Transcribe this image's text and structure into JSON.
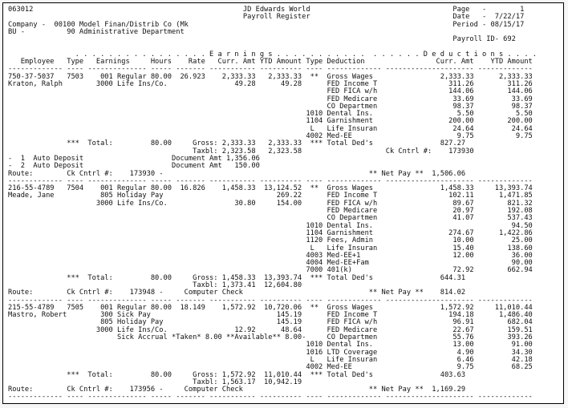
{
  "meta": {
    "program_id": "063012",
    "system_title": "JD Edwards World",
    "report_title": "Payroll Register",
    "page": "1",
    "date": "7/22/17",
    "period": "08/15/17",
    "payroll_id": "692",
    "company": "00100 Model Finan/Distrib Co (Mk",
    "business_unit": "90 Administrative Department",
    "employees": [
      {
        "employee_no": "750-37-5037",
        "name": "Kraton, Ralph",
        "check_type": "7503",
        "hours": "80.00",
        "rate": "26.923",
        "gross": "2,333.33",
        "taxable": "2,323.58",
        "total_deductions": "827.27",
        "net_pay": "1,506.06",
        "ck_cntrl": "173930",
        "payments": [
          "Auto Deposit 1,356.06",
          "Auto Deposit 150.00"
        ]
      },
      {
        "employee_no": "216-55-4789",
        "name": "Meade, Jane",
        "check_type": "7504",
        "hours": "80.00",
        "rate": "16.826",
        "gross": "1,458.33",
        "taxable": "1,373.41",
        "total_deductions": "644.31",
        "net_pay": "814.02",
        "ck_cntrl": "173948",
        "payments": [
          "Computer Check"
        ]
      },
      {
        "employee_no": "215-55-4789",
        "name": "Mastro, Robert",
        "check_type": "7505",
        "hours": "80.00",
        "rate": "18.149",
        "gross": "1,572.92",
        "taxable": "1,563.17",
        "total_deductions": "403.63",
        "net_pay": "1,169.29",
        "ck_cntrl": "173956",
        "payments": [
          "Computer Check"
        ]
      }
    ]
  },
  "report": {
    "separator": "------------- ---- -------------- ----- ------- ----------- ---------- ---- ------------- --------------------- -------------",
    "lines": [
      [
        [
          0,
          "063012"
        ],
        [
          56,
          "JD Edwards World"
        ],
        [
          106,
          "Page"
        ],
        [
          113,
          "-"
        ],
        [
          122,
          "1"
        ]
      ],
      [
        [
          56,
          "Payroll Register"
        ],
        [
          106,
          "Date"
        ],
        [
          113,
          "-"
        ],
        [
          116,
          "7/22/17"
        ]
      ],
      [
        [
          0,
          "Company"
        ],
        [
          8,
          "-"
        ],
        [
          11,
          "00100"
        ],
        [
          17,
          "Model Finan/Distrib Co (Mk"
        ],
        [
          106,
          "Period"
        ],
        [
          113,
          "-"
        ],
        [
          115,
          "08/15/17"
        ]
      ],
      [
        [
          0,
          "BU"
        ],
        [
          3,
          "-"
        ],
        [
          14,
          "90"
        ],
        [
          17,
          "Administrative Department"
        ]
      ],
      [
        [
          106,
          "Payroll ID- 692"
        ]
      ],
      [],
      [
        [
          16,
          ". . . . . . . . . . . . . . . ."
        ],
        [
          48,
          "E a r n i n g s"
        ],
        [
          64,
          ". . . . . . . . . . ."
        ],
        [
          87,
          ". . . . . ."
        ],
        [
          99,
          "D e d u c t i o n s"
        ],
        [
          119,
          ". . . ."
        ]
      ],
      [
        [
          3,
          "Employee"
        ],
        [
          14,
          "Type"
        ],
        [
          21,
          "Earnings"
        ],
        [
          34,
          "Hours"
        ],
        [
          43,
          "Rate"
        ],
        [
          50,
          "Curr. Amt"
        ],
        [
          60,
          "YTD Amount"
        ],
        [
          71,
          "Type"
        ],
        [
          76,
          "Deduction"
        ],
        [
          102,
          "Curr. Amt"
        ],
        [
          115,
          "YTD Amount"
        ]
      ],
      "SEP",
      [
        [
          0,
          "750-37-5037"
        ],
        [
          14,
          "7503"
        ],
        [
          22,
          "001"
        ],
        [
          26,
          "Regular"
        ],
        [
          34,
          "80.00"
        ],
        [
          41,
          "26.923"
        ],
        [
          51,
          "2,333.33"
        ],
        [
          62,
          "2,333.33"
        ],
        [
          72,
          "**"
        ],
        [
          76,
          "Gross Wages"
        ],
        [
          103,
          "2,333.33"
        ],
        [
          117,
          "2,333.33"
        ]
      ],
      [
        [
          0,
          "Kraton, Ralph"
        ],
        [
          21,
          "3000"
        ],
        [
          26,
          "Life Ins/Co."
        ],
        [
          54,
          "49.28"
        ],
        [
          65,
          "49.28"
        ],
        [
          76,
          "FED Income T"
        ],
        [
          105,
          "311.26"
        ],
        [
          119,
          "311.26"
        ]
      ],
      [
        [
          76,
          "FED FICA w/h"
        ],
        [
          105,
          "144.06"
        ],
        [
          119,
          "144.06"
        ]
      ],
      [
        [
          76,
          "FED Medicare"
        ],
        [
          106,
          "33.69"
        ],
        [
          120,
          "33.69"
        ]
      ],
      [
        [
          76,
          "CO Departmen"
        ],
        [
          106,
          "98.37"
        ],
        [
          120,
          "98.37"
        ]
      ],
      [
        [
          71,
          "1010"
        ],
        [
          76,
          "Dental Ins."
        ],
        [
          107,
          "5.50"
        ],
        [
          121,
          "5.50"
        ]
      ],
      [
        [
          71,
          "1104"
        ],
        [
          76,
          "Garnishment"
        ],
        [
          105,
          "200.00"
        ],
        [
          119,
          "200.00"
        ]
      ],
      [
        [
          72,
          "L"
        ],
        [
          76,
          "Life Insuran"
        ],
        [
          106,
          "24.64"
        ],
        [
          120,
          "24.64"
        ]
      ],
      [
        [
          71,
          "4002"
        ],
        [
          76,
          "Med-EE"
        ],
        [
          107,
          "9.75"
        ],
        [
          121,
          "9.75"
        ]
      ],
      [
        [
          14,
          "***"
        ],
        [
          19,
          "Total:"
        ],
        [
          34,
          "80.00"
        ],
        [
          44,
          "Gross:"
        ],
        [
          51,
          "2,333.33"
        ],
        [
          62,
          "2,333.33"
        ],
        [
          72,
          "***"
        ],
        [
          76,
          "Total Ded's"
        ],
        [
          103,
          "827.27"
        ]
      ],
      [
        [
          44,
          "Taxbl:"
        ],
        [
          51,
          "2,323.58"
        ],
        [
          62,
          "2,323.58"
        ],
        [
          90,
          "Ck Cntrl #:"
        ],
        [
          105,
          "173930"
        ]
      ],
      [
        [
          0,
          "-"
        ],
        [
          3,
          "1"
        ],
        [
          6,
          "Auto Deposit"
        ],
        [
          39,
          "Document Amt"
        ],
        [
          52,
          "1,356.06"
        ]
      ],
      [
        [
          0,
          "-"
        ],
        [
          3,
          "2"
        ],
        [
          6,
          "Auto Deposit"
        ],
        [
          39,
          "Document Amt"
        ],
        [
          54,
          "150.00"
        ]
      ],
      [
        [
          0,
          "Route:"
        ],
        [
          14,
          "Ck Cntrl #:"
        ],
        [
          29,
          "173930"
        ],
        [
          36,
          "-"
        ],
        [
          86,
          "** Net Pay **"
        ],
        [
          101,
          "1,506.06"
        ]
      ],
      "SEP",
      [
        [
          0,
          "216-55-4789"
        ],
        [
          14,
          "7504"
        ],
        [
          22,
          "001"
        ],
        [
          26,
          "Regular"
        ],
        [
          34,
          "80.00"
        ],
        [
          41,
          "16.826"
        ],
        [
          51,
          "1,458.33"
        ],
        [
          61,
          "13,124.52"
        ],
        [
          72,
          "**"
        ],
        [
          76,
          "Gross Wages"
        ],
        [
          103,
          "1,458.33"
        ],
        [
          116,
          "13,393.74"
        ]
      ],
      [
        [
          0,
          "Meade, Jane"
        ],
        [
          22,
          "805"
        ],
        [
          26,
          "Holiday Pay"
        ],
        [
          64,
          "269.22"
        ],
        [
          76,
          "FED Income T"
        ],
        [
          105,
          "102.11"
        ],
        [
          117,
          "1,471.85"
        ]
      ],
      [
        [
          21,
          "3000"
        ],
        [
          26,
          "Life Ins/Co."
        ],
        [
          54,
          "30.80"
        ],
        [
          64,
          "154.00"
        ],
        [
          76,
          "FED FICA w/h"
        ],
        [
          106,
          "89.67"
        ],
        [
          119,
          "821.32"
        ]
      ],
      [
        [
          76,
          "FED Medicare"
        ],
        [
          106,
          "20.97"
        ],
        [
          119,
          "192.08"
        ]
      ],
      [
        [
          76,
          "CO Departmen"
        ],
        [
          106,
          "41.07"
        ],
        [
          119,
          "537.43"
        ]
      ],
      [
        [
          71,
          "1010"
        ],
        [
          76,
          "Dental Ins."
        ],
        [
          120,
          "94.50"
        ]
      ],
      [
        [
          71,
          "1104"
        ],
        [
          76,
          "Garnishment"
        ],
        [
          105,
          "274.67"
        ],
        [
          117,
          "1,422.86"
        ]
      ],
      [
        [
          71,
          "1120"
        ],
        [
          76,
          "Fees, Admin"
        ],
        [
          106,
          "10.00"
        ],
        [
          120,
          "25.00"
        ]
      ],
      [
        [
          72,
          "L"
        ],
        [
          76,
          "Life Insuran"
        ],
        [
          106,
          "15.40"
        ],
        [
          119,
          "138.60"
        ]
      ],
      [
        [
          71,
          "4003"
        ],
        [
          76,
          "Med-EE+1"
        ],
        [
          106,
          "12.00"
        ],
        [
          120,
          "36.00"
        ]
      ],
      [
        [
          71,
          "4004"
        ],
        [
          76,
          "Med-EE+Fam"
        ],
        [
          120,
          "90.00"
        ]
      ],
      [
        [
          71,
          "7000"
        ],
        [
          76,
          "401(k)"
        ],
        [
          106,
          "72.92"
        ],
        [
          119,
          "662.94"
        ]
      ],
      [
        [
          14,
          "***"
        ],
        [
          19,
          "Total:"
        ],
        [
          34,
          "80.00"
        ],
        [
          44,
          "Gross:"
        ],
        [
          51,
          "1,458.33"
        ],
        [
          61,
          "13,393.74"
        ],
        [
          72,
          "***"
        ],
        [
          76,
          "Total Ded's"
        ],
        [
          103,
          "644.31"
        ]
      ],
      [
        [
          44,
          "Taxbl:"
        ],
        [
          51,
          "1,373.41"
        ],
        [
          61,
          "12,604.80"
        ]
      ],
      [
        [
          0,
          "Route:"
        ],
        [
          14,
          "Ck Cntrl #:"
        ],
        [
          29,
          "173948"
        ],
        [
          36,
          "-"
        ],
        [
          42,
          "Computer Check"
        ],
        [
          86,
          "** Net Pay **"
        ],
        [
          103,
          "814.02"
        ]
      ],
      "SEP",
      [
        [
          0,
          "215-55-4789"
        ],
        [
          14,
          "7505"
        ],
        [
          22,
          "001"
        ],
        [
          26,
          "Regular"
        ],
        [
          34,
          "80.00"
        ],
        [
          41,
          "18.149"
        ],
        [
          51,
          "1,572.92"
        ],
        [
          61,
          "10,720.06"
        ],
        [
          72,
          "**"
        ],
        [
          76,
          "Gross Wages"
        ],
        [
          103,
          "1,572.92"
        ],
        [
          116,
          "11,010.44"
        ]
      ],
      [
        [
          0,
          "Mastro, Robert"
        ],
        [
          22,
          "300"
        ],
        [
          26,
          "Sick Pay"
        ],
        [
          64,
          "145.19"
        ],
        [
          76,
          "FED Income T"
        ],
        [
          105,
          "194.18"
        ],
        [
          117,
          "1,486.40"
        ]
      ],
      [
        [
          22,
          "805"
        ],
        [
          26,
          "Holiday Pay"
        ],
        [
          64,
          "145.19"
        ],
        [
          76,
          "FED FICA w/h"
        ],
        [
          106,
          "96.91"
        ],
        [
          119,
          "682.04"
        ]
      ],
      [
        [
          21,
          "3000"
        ],
        [
          26,
          "Life Ins/Co."
        ],
        [
          54,
          "12.92"
        ],
        [
          65,
          "48.64"
        ],
        [
          76,
          "FED Medicare"
        ],
        [
          106,
          "22.67"
        ],
        [
          119,
          "159.51"
        ]
      ],
      [
        [
          26,
          "Sick Accrual *Taken*"
        ],
        [
          47,
          "8.00"
        ],
        [
          52,
          "**Available**"
        ],
        [
          66,
          "8.00-"
        ],
        [
          76,
          "CO Departmen"
        ],
        [
          106,
          "55.76"
        ],
        [
          119,
          "393.26"
        ]
      ],
      [
        [
          71,
          "1010"
        ],
        [
          76,
          "Dental Ins."
        ],
        [
          106,
          "13.00"
        ],
        [
          120,
          "91.00"
        ]
      ],
      [
        [
          71,
          "1016"
        ],
        [
          76,
          "LTD Coverage"
        ],
        [
          107,
          "4.90"
        ],
        [
          120,
          "34.30"
        ]
      ],
      [
        [
          72,
          "L"
        ],
        [
          76,
          "Life Insuran"
        ],
        [
          107,
          "6.46"
        ],
        [
          120,
          "42.18"
        ]
      ],
      [
        [
          71,
          "4002"
        ],
        [
          76,
          "Med-EE"
        ],
        [
          107,
          "9.75"
        ],
        [
          120,
          "68.25"
        ]
      ],
      [
        [
          14,
          "***"
        ],
        [
          19,
          "Total:"
        ],
        [
          34,
          "80.00"
        ],
        [
          44,
          "Gross:"
        ],
        [
          51,
          "1,572.92"
        ],
        [
          61,
          "11,010.44"
        ],
        [
          72,
          "***"
        ],
        [
          76,
          "Total Ded's"
        ],
        [
          103,
          "403.63"
        ]
      ],
      [
        [
          44,
          "Taxbl:"
        ],
        [
          51,
          "1,563.17"
        ],
        [
          61,
          "10,942.19"
        ]
      ],
      [
        [
          0,
          "Route:"
        ],
        [
          14,
          "Ck Cntrl #:"
        ],
        [
          29,
          "173956"
        ],
        [
          36,
          "-"
        ],
        [
          42,
          "Computer Check"
        ],
        [
          86,
          "** Net Pay **"
        ],
        [
          101,
          "1,169.29"
        ]
      ],
      "SEP"
    ]
  }
}
